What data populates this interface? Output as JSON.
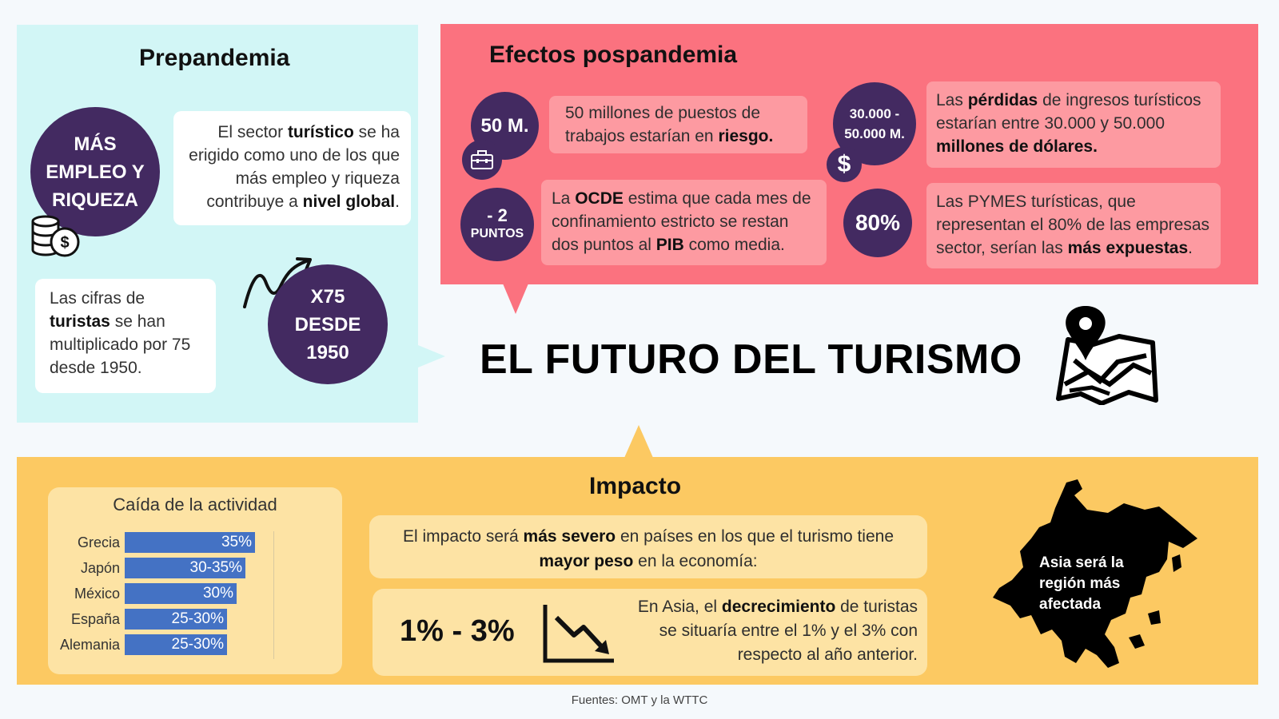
{
  "title": "EL FUTURO DEL TURISMO",
  "colors": {
    "prepandemia_bg": "#d2f6f6",
    "pospandemia_bg": "#fb727f",
    "impacto_bg": "#fcc962",
    "circle": "#432a61",
    "bar": "#4472c4"
  },
  "prepandemia": {
    "title": "Prepandemia",
    "circle1": "MÁS EMPLEO Y RIQUEZA",
    "card1": {
      "t1": "El sector ",
      "b1": "turístico",
      "t2": " se ha erigido como uno de los que más empleo y riqueza contribuye a ",
      "b2": "nivel global",
      "t3": "."
    },
    "card2": {
      "t1": "Las cifras de ",
      "b1": "turistas",
      "t2": " se han multiplicado por 75 desde 1950."
    },
    "circle2": "X75 DESDE 1950"
  },
  "pospandemia": {
    "title": "Efectos pospandemia",
    "items": [
      {
        "stat": "50 M.",
        "t1": "50 millones de puestos de trabajos estarían en ",
        "b1": "riesgo."
      },
      {
        "stat": "30.000 - 50.000 M.",
        "t1": "Las ",
        "b1": "pérdidas",
        "t2": " de ingresos turísticos estarían entre 30.000 y 50.000 ",
        "b2": "millones de dólares."
      },
      {
        "stat_main": "- 2",
        "stat_sub": "PUNTOS",
        "t1": "La ",
        "b1": "OCDE",
        "t2": " estima que cada mes de confinamiento estricto se restan dos puntos al ",
        "b2": "PIB",
        "t3": " como media."
      },
      {
        "stat": "80%",
        "t1": "Las PYMES turísticas, que representan el 80% de las empresas sector, serían las ",
        "b1": "más expuestas",
        "t2": "."
      }
    ]
  },
  "impacto": {
    "title": "Impacto",
    "chart_card_title": "Caída de la actividad",
    "card1": {
      "t1": "El impacto será ",
      "b1": "más severo",
      "t2": " en países en los que el turismo tiene ",
      "b2": "mayor peso",
      "t3": " en la economía:"
    },
    "range": "1% - 3%",
    "card2": {
      "t1": "En Asia, el ",
      "b1": "decrecimiento",
      "t2": " de turistas se situaría entre el 1% y el 3% con respecto al año anterior."
    },
    "asia_label": "Asia será la región más afectada"
  },
  "chart_data": {
    "type": "bar",
    "orientation": "horizontal",
    "title": "Caída de la actividad",
    "categories": [
      "Grecia",
      "Japón",
      "México",
      "España",
      "Alemania"
    ],
    "values": [
      35,
      32.5,
      30,
      27.5,
      27.5
    ],
    "labels": [
      "35%",
      "30-35%",
      "30%",
      "25-30%",
      "25-30%"
    ],
    "xlim": [
      0,
      40
    ]
  },
  "footer": "Fuentes: OMT y la WTTC"
}
